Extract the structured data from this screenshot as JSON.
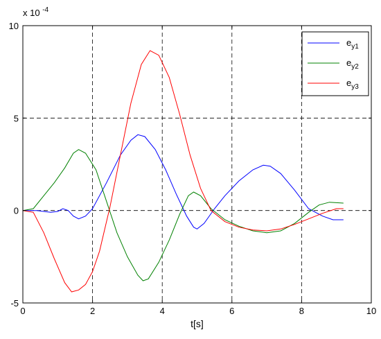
{
  "chart_data": {
    "type": "line",
    "title": "",
    "xlabel": "t[s]",
    "ylabel": "",
    "xlim": [
      0,
      10
    ],
    "ylim": [
      -5,
      10
    ],
    "y_multiplier": "x 10",
    "y_multiplier_exp": "-4",
    "xticks": [
      0,
      2,
      4,
      6,
      8,
      10
    ],
    "yticks": [
      -5,
      0,
      5,
      10
    ],
    "xtick_labels": [
      "0",
      "2",
      "4",
      "6",
      "8",
      "10"
    ],
    "ytick_labels": [
      "-5",
      "0",
      "5",
      "10"
    ],
    "grid": true,
    "legend_position": "top-right",
    "series": [
      {
        "name": "e_y1",
        "label_base": "e",
        "label_sub": "y1",
        "color": "#0000ff",
        "x": [
          0,
          0.4,
          0.8,
          1.0,
          1.15,
          1.3,
          1.45,
          1.6,
          1.8,
          2.0,
          2.4,
          2.8,
          3.1,
          3.3,
          3.5,
          3.8,
          4.1,
          4.4,
          4.7,
          4.9,
          5.0,
          5.2,
          5.5,
          5.8,
          6.2,
          6.6,
          6.9,
          7.1,
          7.4,
          7.8,
          8.2,
          8.6,
          8.9,
          9.2
        ],
        "y": [
          0,
          0,
          -0.1,
          -0.05,
          0.1,
          0.0,
          -0.3,
          -0.45,
          -0.3,
          0.1,
          1.5,
          3.0,
          3.8,
          4.1,
          4.0,
          3.3,
          2.2,
          0.9,
          -0.3,
          -0.9,
          -1.0,
          -0.7,
          0.1,
          0.8,
          1.6,
          2.2,
          2.45,
          2.4,
          2.0,
          1.1,
          0.1,
          -0.3,
          -0.5,
          -0.5
        ]
      },
      {
        "name": "e_y2",
        "label_base": "e",
        "label_sub": "y2",
        "color": "#008000",
        "x": [
          0,
          0.3,
          0.6,
          0.9,
          1.2,
          1.45,
          1.6,
          1.8,
          2.1,
          2.4,
          2.7,
          3.0,
          3.3,
          3.45,
          3.6,
          3.9,
          4.2,
          4.5,
          4.75,
          4.9,
          5.1,
          5.4,
          5.8,
          6.2,
          6.6,
          7.0,
          7.4,
          7.8,
          8.2,
          8.5,
          8.8,
          9.2
        ],
        "y": [
          0,
          0.1,
          0.8,
          1.5,
          2.3,
          3.1,
          3.3,
          3.1,
          2.2,
          0.5,
          -1.2,
          -2.5,
          -3.5,
          -3.8,
          -3.7,
          -2.8,
          -1.6,
          -0.2,
          0.8,
          1.0,
          0.8,
          0.1,
          -0.5,
          -0.85,
          -1.1,
          -1.2,
          -1.1,
          -0.7,
          -0.1,
          0.3,
          0.45,
          0.4
        ]
      },
      {
        "name": "e_y3",
        "label_base": "e",
        "label_sub": "y3",
        "color": "#ff0000",
        "x": [
          0,
          0.3,
          0.6,
          0.9,
          1.2,
          1.4,
          1.6,
          1.8,
          2.0,
          2.2,
          2.5,
          2.8,
          3.1,
          3.4,
          3.65,
          3.9,
          4.2,
          4.5,
          4.8,
          5.1,
          5.4,
          5.8,
          6.2,
          6.6,
          7.0,
          7.4,
          7.8,
          8.2,
          8.6,
          9.0,
          9.2
        ],
        "y": [
          0,
          -0.1,
          -1.2,
          -2.6,
          -3.9,
          -4.4,
          -4.3,
          -4.0,
          -3.3,
          -2.2,
          0.2,
          3.0,
          5.8,
          7.9,
          8.65,
          8.4,
          7.2,
          5.2,
          3.0,
          1.2,
          0.0,
          -0.6,
          -0.9,
          -1.05,
          -1.1,
          -1.0,
          -0.75,
          -0.45,
          -0.15,
          0.1,
          0.1
        ]
      }
    ]
  }
}
